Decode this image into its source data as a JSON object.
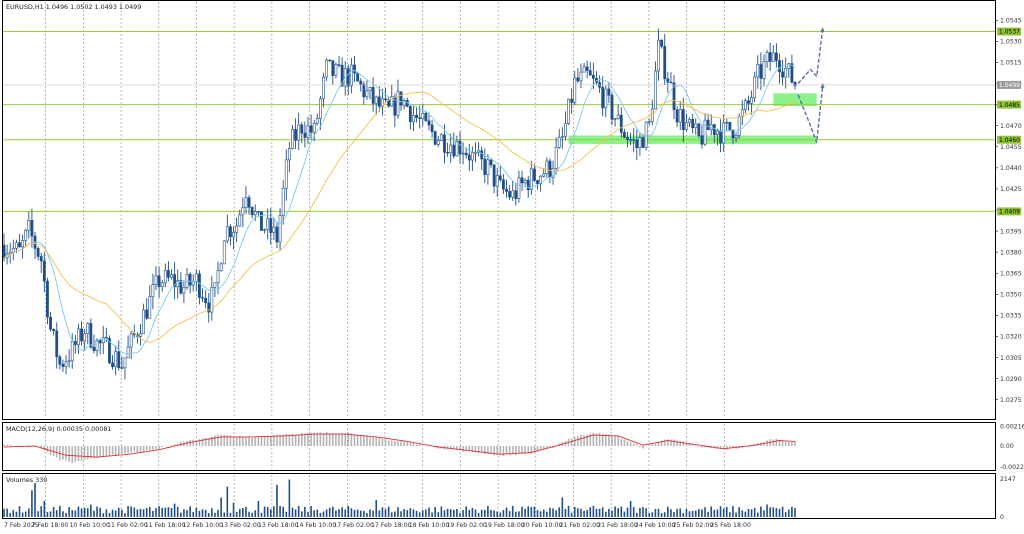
{
  "colors": {
    "candle": "#1f4e8a",
    "ma_fast": "#7ec9e6",
    "ma_slow": "#f2c14e",
    "level_line": "#9acd32",
    "zone": "#66ee66",
    "level_tag": "#8fc33a",
    "price_tag": "#9a9a9a",
    "macd_hist": "#b4b4b4",
    "macd_signal": "#e03030",
    "volume": "#1f4e8a",
    "forecast": "#5a6fa8"
  },
  "chart_data": [
    {
      "type": "candlestick",
      "title": "EURUSD,H1  1.0496 1.0502 1.0493 1.0499",
      "ylim": [
        1.0262,
        1.0558
      ],
      "price_ticks": [
        "1.0545",
        "1.0530",
        "1.0515",
        "1.0500",
        "1.0485",
        "1.0470",
        "1.0455",
        "1.0440",
        "1.0425",
        "1.0410",
        "1.0395",
        "1.0380",
        "1.0365",
        "1.0350",
        "1.0335",
        "1.0320",
        "1.0305",
        "1.0290",
        "1.0275"
      ],
      "current_price": "1.0499",
      "level_tags": [
        "1.0537",
        "1.0485",
        "1.0460",
        "1.0409"
      ],
      "levels": [
        1.0537,
        1.0485,
        1.046,
        1.0409
      ],
      "zones": [
        {
          "from_bar": 248,
          "to_bar": 262,
          "low": 1.0484,
          "high": 1.0493
        },
        {
          "from_bar": 182,
          "to_bar": 262,
          "low": 1.0457,
          "high": 1.0463
        }
      ],
      "time_labels": [
        "7 Feb 2025",
        "7 Feb 18:00",
        "10 Feb 10:00",
        "11 Feb 02:00",
        "11 Feb 18:00",
        "12 Feb 10:00",
        "13 Feb 02:00",
        "13 Feb 18:00",
        "14 Feb 10:00",
        "17 Feb 02:00",
        "17 Feb 18:00",
        "18 Feb 10:00",
        "19 Feb 02:00",
        "19 Feb 18:00",
        "20 Feb 10:00",
        "21 Feb 02:00",
        "21 Feb 18:00",
        "24 Feb 10:00",
        "25 Feb 02:00",
        "25 Feb 18:00"
      ],
      "keypoints": [
        [
          0,
          1.0385
        ],
        [
          5,
          1.038
        ],
        [
          8,
          1.0395
        ],
        [
          12,
          1.0375
        ],
        [
          15,
          1.0325
        ],
        [
          18,
          1.03
        ],
        [
          22,
          1.031
        ],
        [
          26,
          1.0325
        ],
        [
          30,
          1.0315
        ],
        [
          34,
          1.031
        ],
        [
          38,
          1.03
        ],
        [
          42,
          1.032
        ],
        [
          46,
          1.034
        ],
        [
          50,
          1.036
        ],
        [
          54,
          1.036
        ],
        [
          58,
          1.0355
        ],
        [
          62,
          1.036
        ],
        [
          66,
          1.0345
        ],
        [
          68,
          1.035
        ],
        [
          71,
          1.0395
        ],
        [
          75,
          1.04
        ],
        [
          78,
          1.0425
        ],
        [
          82,
          1.04
        ],
        [
          86,
          1.0395
        ],
        [
          88,
          1.039
        ],
        [
          92,
          1.0455
        ],
        [
          96,
          1.047
        ],
        [
          100,
          1.0465
        ],
        [
          104,
          1.051
        ],
        [
          108,
          1.0505
        ],
        [
          112,
          1.0505
        ],
        [
          116,
          1.0495
        ],
        [
          120,
          1.0485
        ],
        [
          124,
          1.048
        ],
        [
          128,
          1.049
        ],
        [
          132,
          1.0478
        ],
        [
          136,
          1.0468
        ],
        [
          140,
          1.0462
        ],
        [
          144,
          1.0458
        ],
        [
          148,
          1.0455
        ],
        [
          152,
          1.0445
        ],
        [
          156,
          1.044
        ],
        [
          160,
          1.0425
        ],
        [
          164,
          1.042
        ],
        [
          168,
          1.043
        ],
        [
          172,
          1.0435
        ],
        [
          176,
          1.044
        ],
        [
          180,
          1.046
        ],
        [
          184,
          1.05
        ],
        [
          188,
          1.0505
        ],
        [
          192,
          1.0495
        ],
        [
          196,
          1.048
        ],
        [
          200,
          1.0465
        ],
        [
          204,
          1.0455
        ],
        [
          208,
          1.047
        ],
        [
          211,
          1.0525
        ],
        [
          214,
          1.0505
        ],
        [
          217,
          1.048
        ],
        [
          220,
          1.047
        ],
        [
          224,
          1.046
        ],
        [
          228,
          1.047
        ],
        [
          232,
          1.0465
        ],
        [
          236,
          1.047
        ],
        [
          240,
          1.0485
        ],
        [
          243,
          1.0505
        ],
        [
          246,
          1.0515
        ],
        [
          249,
          1.052
        ],
        [
          252,
          1.051
        ],
        [
          255,
          1.05
        ]
      ],
      "forecast_paths": [
        [
          [
            256,
            1.05
          ],
          [
            260,
            1.051
          ],
          [
            262,
            1.0505
          ],
          [
            264,
            1.054
          ]
        ],
        [
          [
            256,
            1.0492
          ],
          [
            260,
            1.047
          ],
          [
            262,
            1.0458
          ],
          [
            264,
            1.05
          ]
        ]
      ]
    },
    {
      "type": "bar",
      "title": "MACD(12,26,9) 0.00035 0.00081",
      "ylim": [
        -0.0025,
        0.0024
      ],
      "ticks": [
        "0.00216",
        "0.00",
        "-0.00224"
      ],
      "histogram_keypoints": [
        [
          0,
          0.0002
        ],
        [
          12,
          -0.0002
        ],
        [
          18,
          -0.0015
        ],
        [
          22,
          -0.0018
        ],
        [
          30,
          -0.0012
        ],
        [
          40,
          -0.0008
        ],
        [
          50,
          -0.0002
        ],
        [
          60,
          0.0006
        ],
        [
          70,
          0.0012
        ],
        [
          80,
          0.0009
        ],
        [
          90,
          0.0013
        ],
        [
          100,
          0.0014
        ],
        [
          110,
          0.0015
        ],
        [
          120,
          0.0009
        ],
        [
          130,
          0.0004
        ],
        [
          140,
          -0.0002
        ],
        [
          150,
          -0.0006
        ],
        [
          160,
          -0.001
        ],
        [
          170,
          -0.0008
        ],
        [
          176,
          -0.0003
        ],
        [
          182,
          0.0008
        ],
        [
          190,
          0.0015
        ],
        [
          198,
          0.001
        ],
        [
          206,
          -0.0002
        ],
        [
          212,
          0.0006
        ],
        [
          216,
          0.0008
        ],
        [
          224,
          -0.0001
        ],
        [
          232,
          -0.0004
        ],
        [
          240,
          -0.0001
        ],
        [
          248,
          0.0008
        ],
        [
          255,
          0.0004
        ]
      ],
      "signal_keypoints": [
        [
          0,
          -0.0001
        ],
        [
          10,
          0.0
        ],
        [
          20,
          -0.001
        ],
        [
          30,
          -0.0012
        ],
        [
          40,
          -0.0009
        ],
        [
          50,
          -0.0004
        ],
        [
          60,
          0.0004
        ],
        [
          70,
          0.001
        ],
        [
          80,
          0.001
        ],
        [
          90,
          0.0011
        ],
        [
          100,
          0.0013
        ],
        [
          110,
          0.0013
        ],
        [
          120,
          0.001
        ],
        [
          130,
          0.0005
        ],
        [
          140,
          -0.0001
        ],
        [
          150,
          -0.0005
        ],
        [
          160,
          -0.0009
        ],
        [
          170,
          -0.0007
        ],
        [
          180,
          0.0002
        ],
        [
          190,
          0.0012
        ],
        [
          198,
          0.0011
        ],
        [
          206,
          0.0001
        ],
        [
          214,
          0.0006
        ],
        [
          222,
          0.0002
        ],
        [
          232,
          -0.0003
        ],
        [
          242,
          0.0001
        ],
        [
          250,
          0.0006
        ],
        [
          255,
          0.0005
        ]
      ]
    },
    {
      "type": "bar",
      "title": "Volumes 330",
      "ylim": [
        0,
        2300
      ],
      "ticks": [
        "2147",
        "0"
      ],
      "spike_bars": [
        [
          9,
          1500
        ],
        [
          10,
          1900
        ],
        [
          13,
          900
        ],
        [
          28,
          700
        ],
        [
          55,
          750
        ],
        [
          70,
          1100
        ],
        [
          72,
          1700
        ],
        [
          74,
          800
        ],
        [
          82,
          900
        ],
        [
          88,
          1800
        ],
        [
          92,
          2100
        ],
        [
          120,
          950
        ],
        [
          180,
          1100
        ],
        [
          202,
          900
        ],
        [
          246,
          700
        ]
      ],
      "base_volume": 330
    }
  ]
}
